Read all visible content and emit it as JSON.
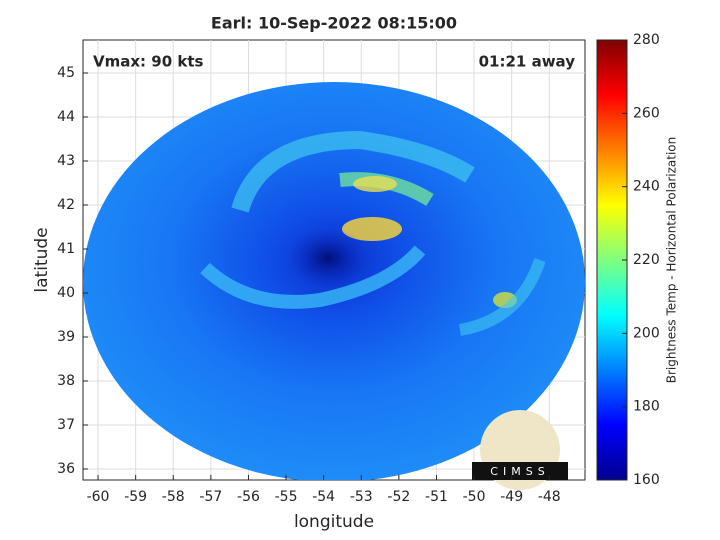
{
  "chart_data": {
    "type": "image",
    "title": "Earl: 10-Sep-2022 08:15:00",
    "annotations": [
      "Vmax: 90 kts",
      "01:21 away"
    ],
    "xlabel": "longitude",
    "ylabel": "latitude",
    "xlim": [
      -60.4,
      -47.05
    ],
    "ylim": [
      35.75,
      45.75
    ],
    "xticks": [
      -60,
      -59,
      -58,
      -57,
      -56,
      -55,
      -54,
      -53,
      -52,
      -51,
      -50,
      -49,
      -48
    ],
    "yticks": [
      36,
      37,
      38,
      39,
      40,
      41,
      42,
      43,
      44,
      45
    ],
    "grid": true,
    "colorbar": {
      "label": "Brightness Temp - Horizontal Polarization",
      "lim": [
        160,
        280
      ],
      "ticks": [
        160,
        180,
        200,
        220,
        240,
        260,
        280
      ],
      "colormap": "jet"
    },
    "logo": "CIMSS"
  }
}
